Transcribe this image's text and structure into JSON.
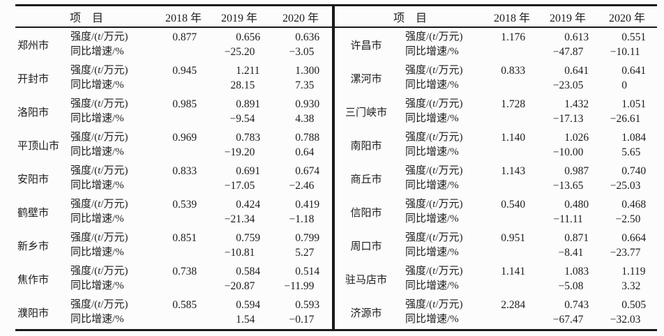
{
  "figure": {
    "colors": {
      "line": "#191919",
      "text": "#1c1c1c",
      "background": "#fcfcfc"
    },
    "header": {
      "item_label": "项　目",
      "year_labels": [
        "2018 年",
        "2019 年",
        "2020 年"
      ]
    },
    "row_labels": {
      "intensity_prefix": "强度/(",
      "intensity_var": "t",
      "intensity_suffix": "/万元)",
      "growth": "同比增速/%"
    },
    "left_rows": [
      {
        "city": "郑州市",
        "intensity": [
          "0.877",
          "0.656",
          "0.636"
        ],
        "growth": [
          "",
          "−25.20",
          "−3.05"
        ]
      },
      {
        "city": "开封市",
        "intensity": [
          "0.945",
          "1.211",
          "1.300"
        ],
        "growth": [
          "",
          "28.15",
          "7.35"
        ]
      },
      {
        "city": "洛阳市",
        "intensity": [
          "0.985",
          "0.891",
          "0.930"
        ],
        "growth": [
          "",
          "−9.54",
          "4.38"
        ]
      },
      {
        "city": "平顶山市",
        "intensity": [
          "0.969",
          "0.783",
          "0.788"
        ],
        "growth": [
          "",
          "−19.20",
          "0.64"
        ]
      },
      {
        "city": "安阳市",
        "intensity": [
          "0.833",
          "0.691",
          "0.674"
        ],
        "growth": [
          "",
          "−17.05",
          "−2.46"
        ]
      },
      {
        "city": "鹤壁市",
        "intensity": [
          "0.539",
          "0.424",
          "0.419"
        ],
        "growth": [
          "",
          "−21.34",
          "−1.18"
        ]
      },
      {
        "city": "新乡市",
        "intensity": [
          "0.851",
          "0.759",
          "0.799"
        ],
        "growth": [
          "",
          "−10.81",
          "5.27"
        ]
      },
      {
        "city": "焦作市",
        "intensity": [
          "0.738",
          "0.584",
          "0.514"
        ],
        "growth": [
          "",
          "−20.87",
          "−11.99"
        ]
      },
      {
        "city": "濮阳市",
        "intensity": [
          "0.585",
          "0.594",
          "0.593"
        ],
        "growth": [
          "",
          "1.54",
          "−0.17"
        ]
      }
    ],
    "right_rows": [
      {
        "city": "许昌市",
        "intensity": [
          "1.176",
          "0.613",
          "0.551"
        ],
        "growth": [
          "",
          "−47.87",
          "−10.11"
        ]
      },
      {
        "city": "漯河市",
        "intensity": [
          "0.833",
          "0.641",
          "0.641"
        ],
        "growth": [
          "",
          "−23.05",
          "0"
        ]
      },
      {
        "city": "三门峡市",
        "intensity": [
          "1.728",
          "1.432",
          "1.051"
        ],
        "growth": [
          "",
          "−17.13",
          "−26.61"
        ]
      },
      {
        "city": "南阳市",
        "intensity": [
          "1.140",
          "1.026",
          "1.084"
        ],
        "growth": [
          "",
          "−10.00",
          "5.65"
        ]
      },
      {
        "city": "商丘市",
        "intensity": [
          "1.143",
          "0.987",
          "0.740"
        ],
        "growth": [
          "",
          "−13.65",
          "−25.03"
        ]
      },
      {
        "city": "信阳市",
        "intensity": [
          "0.540",
          "0.480",
          "0.468"
        ],
        "growth": [
          "",
          "−11.11",
          "−2.50"
        ]
      },
      {
        "city": "周口市",
        "intensity": [
          "0.951",
          "0.871",
          "0.664"
        ],
        "growth": [
          "",
          "−8.41",
          "−23.77"
        ]
      },
      {
        "city": "驻马店市",
        "intensity": [
          "1.141",
          "1.083",
          "1.119"
        ],
        "growth": [
          "",
          "−5.08",
          "3.32"
        ]
      },
      {
        "city": "济源市",
        "intensity": [
          "2.284",
          "0.743",
          "0.505"
        ],
        "growth": [
          "",
          "−67.47",
          "−32.03"
        ]
      }
    ]
  }
}
